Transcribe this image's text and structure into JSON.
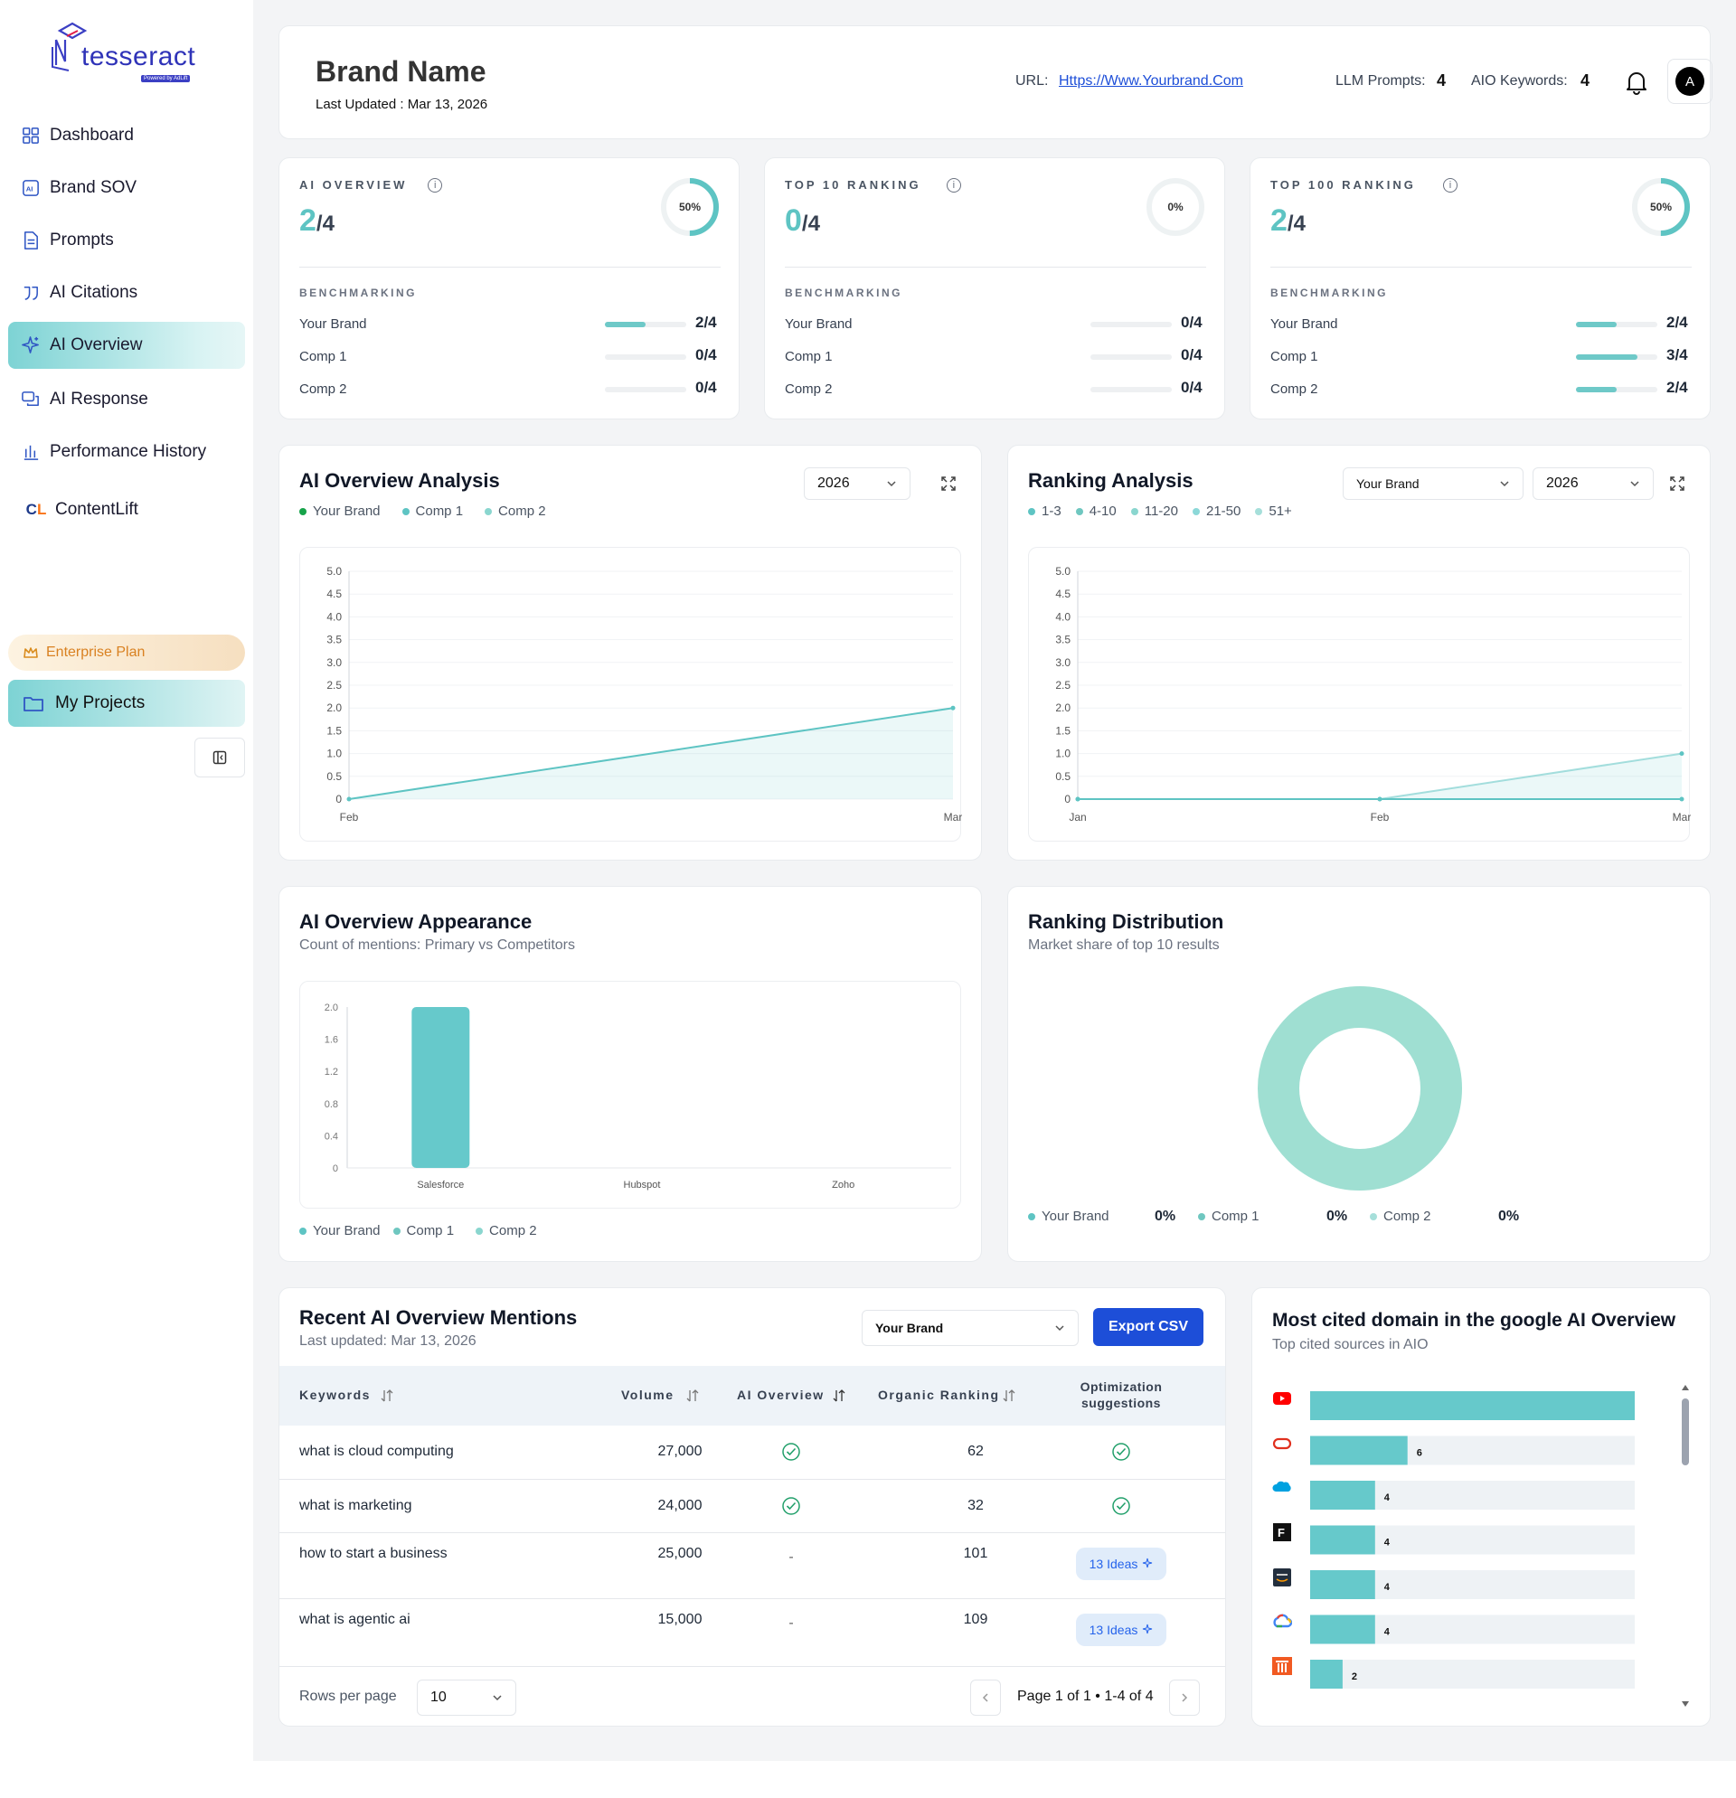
{
  "brand": {
    "logo_text": "tesseract",
    "powered_by": "Powered by AdLift"
  },
  "sidebar": {
    "items": [
      {
        "label": "Dashboard",
        "icon": "grid-icon"
      },
      {
        "label": "Brand SOV",
        "icon": "ai-chip-icon"
      },
      {
        "label": "Prompts",
        "icon": "document-icon"
      },
      {
        "label": "AI Citations",
        "icon": "quote-icon"
      },
      {
        "label": "AI Overview",
        "icon": "sparkle-icon",
        "active": true
      },
      {
        "label": "AI Response",
        "icon": "chat-icon"
      },
      {
        "label": "Performance History",
        "icon": "bar-chart-icon"
      },
      {
        "label": "ContentLift",
        "icon": "contentlift-logo"
      }
    ],
    "plan_label": "Enterprise Plan",
    "projects_label": "My Projects"
  },
  "header": {
    "title": "Brand Name",
    "last_updated": "Last Updated : Mar 13, 2026",
    "url_label": "URL:",
    "url": "Https://Www.Yourbrand.Com",
    "llm_label": "LLM Prompts:",
    "llm_value": "4",
    "aio_label": "AIO Keywords:",
    "aio_value": "4",
    "avatar": "A"
  },
  "kpis": [
    {
      "label": "AI OVERVIEW",
      "num": "2",
      "den": "/4",
      "pct": "50%",
      "progress": 0.5,
      "bench_label": "BENCHMARKING",
      "rows": [
        {
          "name": "Your Brand",
          "value": "2/4",
          "progress": 0.5
        },
        {
          "name": "Comp 1",
          "value": "0/4",
          "progress": 0
        },
        {
          "name": "Comp 2",
          "value": "0/4",
          "progress": 0
        }
      ]
    },
    {
      "label": "TOP 10 RANKING",
      "num": "0",
      "den": "/4",
      "pct": "0%",
      "progress": 0,
      "bench_label": "BENCHMARKING",
      "rows": [
        {
          "name": "Your Brand",
          "value": "0/4",
          "progress": 0
        },
        {
          "name": "Comp 1",
          "value": "0/4",
          "progress": 0
        },
        {
          "name": "Comp 2",
          "value": "0/4",
          "progress": 0
        }
      ]
    },
    {
      "label": "TOP 100 RANKING",
      "num": "2",
      "den": "/4",
      "pct": "50%",
      "progress": 0.5,
      "bench_label": "BENCHMARKING",
      "rows": [
        {
          "name": "Your Brand",
          "value": "2/4",
          "progress": 0.5
        },
        {
          "name": "Comp 1",
          "value": "3/4",
          "progress": 0.75
        },
        {
          "name": "Comp 2",
          "value": "2/4",
          "progress": 0.5
        }
      ]
    }
  ],
  "aio_analysis": {
    "title": "AI Overview Analysis",
    "year": "2026",
    "legend": [
      "Your Brand",
      "Comp 1",
      "Comp 2"
    ]
  },
  "ranking_analysis": {
    "title": "Ranking Analysis",
    "brand_select": "Your Brand",
    "year": "2026",
    "legend": [
      "1-3",
      "4-10",
      "11-20",
      "21-50",
      "51+"
    ]
  },
  "aio_appearance": {
    "title": "AI Overview Appearance",
    "subtitle": "Count of mentions: Primary vs Competitors",
    "legend": [
      "Your Brand",
      "Comp 1",
      "Comp 2"
    ]
  },
  "ranking_distribution": {
    "title": "Ranking Distribution",
    "subtitle": "Market share of top 10 results",
    "legend": [
      {
        "name": "Your Brand",
        "value": "0%"
      },
      {
        "name": "Comp 1",
        "value": "0%"
      },
      {
        "name": "Comp 2",
        "value": "0%"
      }
    ]
  },
  "mentions": {
    "title": "Recent AI Overview Mentions",
    "subtitle": "Last updated: Mar 13, 2026",
    "brand_select": "Your Brand",
    "export_label": "Export CSV",
    "columns": [
      "Keywords",
      "Volume",
      "AI Overview",
      "Organic Ranking",
      "Optimization suggestions"
    ],
    "rows": [
      {
        "keyword": "what is cloud computing",
        "volume": "27,000",
        "aio": "check",
        "ranking": "62",
        "suggestion": "check"
      },
      {
        "keyword": "what is marketing",
        "volume": "24,000",
        "aio": "check",
        "ranking": "32",
        "suggestion": "check"
      },
      {
        "keyword": "how to start a business",
        "volume": "25,000",
        "aio": "-",
        "ranking": "101",
        "suggestion": "13 Ideas"
      },
      {
        "keyword": "what is agentic ai",
        "volume": "15,000",
        "aio": "-",
        "ranking": "109",
        "suggestion": "13 Ideas"
      }
    ],
    "rows_per_page_label": "Rows per page",
    "rows_per_page": "10",
    "page_info": "Page 1 of 1 • 1-4 of 4"
  },
  "domains": {
    "title": "Most cited domain in the google AI Overview",
    "subtitle": "Top cited sources in AIO"
  },
  "chart_data": [
    {
      "type": "area",
      "title": "AI Overview Analysis",
      "x": [
        "Feb",
        "Mar"
      ],
      "series": [
        {
          "name": "Your Brand",
          "values": [
            0,
            2
          ]
        }
      ],
      "ylim": [
        0,
        5
      ],
      "yticks": [
        "0",
        "0.5",
        "1.0",
        "1.5",
        "2.0",
        "2.5",
        "3.0",
        "3.5",
        "4.0",
        "4.5",
        "5.0"
      ],
      "color": "#5ec4c3"
    },
    {
      "type": "area",
      "title": "Ranking Analysis",
      "x": [
        "Jan",
        "Feb",
        "Mar"
      ],
      "series": [
        {
          "name": "1-3",
          "values": [
            0,
            0,
            0
          ]
        },
        {
          "name": "51+",
          "values": [
            0,
            0,
            1
          ]
        }
      ],
      "ylim": [
        0,
        5
      ],
      "yticks": [
        "0",
        "0.5",
        "1.0",
        "1.5",
        "2.0",
        "2.5",
        "3.0",
        "3.5",
        "4.0",
        "4.5",
        "5.0"
      ],
      "color": "#5ec4c3"
    },
    {
      "type": "bar",
      "title": "AI Overview Appearance",
      "categories": [
        "Salesforce",
        "Hubspot",
        "Zoho"
      ],
      "values": [
        2,
        0,
        0
      ],
      "ylim": [
        0,
        2
      ],
      "yticks": [
        "0",
        "0.4",
        "0.8",
        "1.2",
        "1.6",
        "2.0"
      ],
      "color": "#66c9cb"
    },
    {
      "type": "pie",
      "title": "Ranking Distribution",
      "slices": [
        {
          "name": "Your Brand",
          "value": 0
        },
        {
          "name": "Comp 1",
          "value": 0
        },
        {
          "name": "Comp 2",
          "value": 0
        }
      ],
      "color": "#9fdfd2"
    },
    {
      "type": "bar",
      "orientation": "horizontal",
      "title": "Most cited domain in the google AI Overview",
      "categories": [
        "youtube-icon",
        "oracle-icon",
        "salesforce-icon",
        "f-logo-icon",
        "aws-icon",
        "google-cloud-icon",
        "ibm-icon"
      ],
      "values": [
        20,
        6,
        4,
        4,
        4,
        4,
        2
      ],
      "xlim": [
        0,
        20
      ],
      "color": "#66c9cb"
    }
  ]
}
